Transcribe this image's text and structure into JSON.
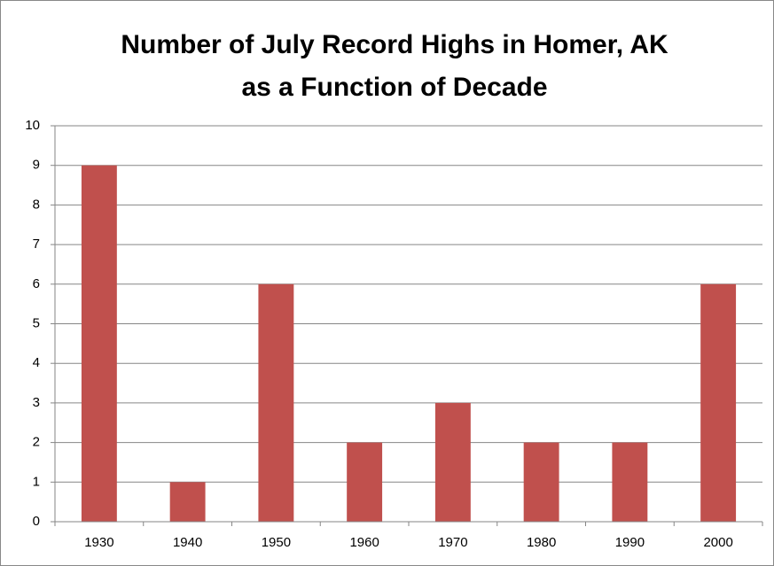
{
  "chart_data": {
    "type": "bar",
    "title": [
      "Number of July Record Highs in Homer, AK",
      "as a Function of Decade"
    ],
    "categories": [
      "1930",
      "1940",
      "1950",
      "1960",
      "1970",
      "1980",
      "1990",
      "2000"
    ],
    "values": [
      9,
      1,
      6,
      2,
      3,
      2,
      2,
      6
    ],
    "color": "#c0504d",
    "ylim": [
      0,
      10
    ],
    "yticks": [
      0,
      1,
      2,
      3,
      4,
      5,
      6,
      7,
      8,
      9,
      10
    ],
    "grid": true
  }
}
